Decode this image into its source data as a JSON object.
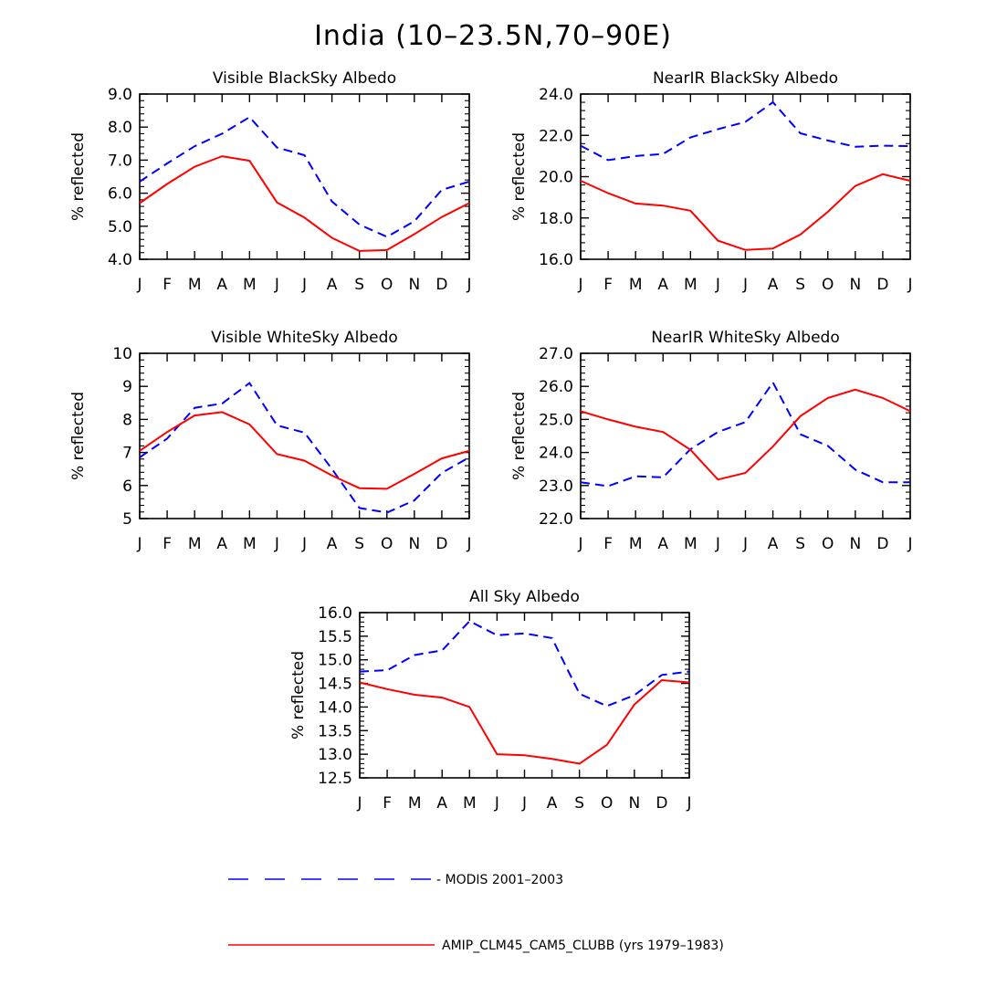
{
  "title": "India (10–23.5N,70–90E)",
  "chart_data": [
    {
      "type": "line",
      "title": "Visible BlackSky Albedo",
      "ylabel": "% reflected",
      "xlabel": "",
      "categories": [
        "J",
        "F",
        "M",
        "A",
        "M",
        "J",
        "J",
        "A",
        "S",
        "O",
        "N",
        "D",
        "J"
      ],
      "ylim": [
        4.0,
        9.0
      ],
      "yticks": [
        "4.0",
        "5.0",
        "6.0",
        "7.0",
        "8.0",
        "9.0"
      ],
      "series": [
        {
          "name": "MODIS 2001–2003",
          "color": "#0000ff",
          "dash": true,
          "values": [
            6.35,
            6.9,
            7.42,
            7.8,
            8.3,
            7.38,
            7.15,
            5.75,
            5.05,
            4.68,
            5.15,
            6.1,
            6.35
          ]
        },
        {
          "name": "AMIP_CLM45_CAM5_CLUBB (yrs 1979–1983)",
          "color": "#ff0000",
          "dash": false,
          "values": [
            5.7,
            6.28,
            6.8,
            7.12,
            6.98,
            5.72,
            5.26,
            4.65,
            4.25,
            4.28,
            4.76,
            5.28,
            5.7
          ]
        }
      ]
    },
    {
      "type": "line",
      "title": "NearIR BlackSky Albedo",
      "ylabel": "% reflected",
      "xlabel": "",
      "categories": [
        "J",
        "F",
        "M",
        "A",
        "M",
        "J",
        "J",
        "A",
        "S",
        "O",
        "N",
        "D",
        "J"
      ],
      "ylim": [
        16.0,
        24.0
      ],
      "yticks": [
        "16.0",
        "18.0",
        "20.0",
        "22.0",
        "24.0"
      ],
      "series": [
        {
          "name": "MODIS 2001–2003",
          "color": "#0000ff",
          "dash": true,
          "values": [
            21.5,
            20.8,
            21.0,
            21.1,
            21.9,
            22.3,
            22.65,
            23.6,
            22.1,
            21.75,
            21.45,
            21.5,
            21.48
          ]
        },
        {
          "name": "AMIP_CLM45_CAM5_CLUBB (yrs 1979–1983)",
          "color": "#ff0000",
          "dash": false,
          "values": [
            19.8,
            19.2,
            18.7,
            18.6,
            18.35,
            16.9,
            16.45,
            16.52,
            17.2,
            18.3,
            19.55,
            20.12,
            19.8
          ]
        }
      ]
    },
    {
      "type": "line",
      "title": "Visible WhiteSky Albedo",
      "ylabel": "% reflected",
      "xlabel": "",
      "categories": [
        "J",
        "F",
        "M",
        "A",
        "M",
        "J",
        "J",
        "A",
        "S",
        "O",
        "N",
        "D",
        "J"
      ],
      "ylim": [
        5,
        10
      ],
      "yticks": [
        "5",
        "6",
        "7",
        "8",
        "9",
        "10"
      ],
      "series": [
        {
          "name": "MODIS 2001–2003",
          "color": "#0000ff",
          "dash": true,
          "values": [
            6.85,
            7.42,
            8.35,
            8.48,
            9.1,
            7.82,
            7.6,
            6.5,
            5.32,
            5.18,
            5.55,
            6.38,
            6.85
          ]
        },
        {
          "name": "AMIP_CLM45_CAM5_CLUBB (yrs 1979–1983)",
          "color": "#ff0000",
          "dash": false,
          "values": [
            7.05,
            7.62,
            8.12,
            8.22,
            7.85,
            6.95,
            6.75,
            6.3,
            5.92,
            5.9,
            6.35,
            6.82,
            7.05
          ]
        }
      ]
    },
    {
      "type": "line",
      "title": "NearIR WhiteSky Albedo",
      "ylabel": "% reflected",
      "xlabel": "",
      "categories": [
        "J",
        "F",
        "M",
        "A",
        "M",
        "J",
        "J",
        "A",
        "S",
        "O",
        "N",
        "D",
        "J"
      ],
      "ylim": [
        22.0,
        27.0
      ],
      "yticks": [
        "22.0",
        "23.0",
        "24.0",
        "25.0",
        "26.0",
        "27.0"
      ],
      "series": [
        {
          "name": "MODIS 2001–2003",
          "color": "#0000ff",
          "dash": true,
          "values": [
            23.1,
            22.98,
            23.28,
            23.25,
            24.1,
            24.62,
            24.92,
            26.12,
            24.55,
            24.2,
            23.48,
            23.1,
            23.1
          ]
        },
        {
          "name": "AMIP_CLM45_CAM5_CLUBB (yrs 1979–1983)",
          "color": "#ff0000",
          "dash": false,
          "values": [
            25.25,
            25.0,
            24.78,
            24.62,
            24.08,
            23.18,
            23.38,
            24.18,
            25.1,
            25.65,
            25.9,
            25.65,
            25.25
          ]
        }
      ]
    },
    {
      "type": "line",
      "title": "All Sky Albedo",
      "ylabel": "% reflected",
      "xlabel": "",
      "categories": [
        "J",
        "F",
        "M",
        "A",
        "M",
        "J",
        "J",
        "A",
        "S",
        "O",
        "N",
        "D",
        "J"
      ],
      "ylim": [
        12.5,
        16.0
      ],
      "yticks": [
        "12.5",
        "13.0",
        "13.5",
        "14.0",
        "14.5",
        "15.0",
        "15.5",
        "16.0"
      ],
      "series": [
        {
          "name": "MODIS 2001–2003",
          "color": "#0000ff",
          "dash": true,
          "values": [
            14.75,
            14.78,
            15.1,
            15.2,
            15.82,
            15.52,
            15.56,
            15.46,
            14.28,
            14.02,
            14.25,
            14.68,
            14.75
          ]
        },
        {
          "name": "AMIP_CLM45_CAM5_CLUBB (yrs 1979–1983)",
          "color": "#ff0000",
          "dash": false,
          "values": [
            14.52,
            14.38,
            14.26,
            14.2,
            14.0,
            13.0,
            12.98,
            12.9,
            12.8,
            13.2,
            14.05,
            14.57,
            14.52
          ]
        }
      ]
    }
  ],
  "legend": [
    {
      "label": "- MODIS 2001–2003",
      "color": "#0000ff",
      "dash": true
    },
    {
      "label": "AMIP_CLM45_CAM5_CLUBB (yrs 1979–1983)",
      "color": "#ff0000",
      "dash": false
    }
  ]
}
